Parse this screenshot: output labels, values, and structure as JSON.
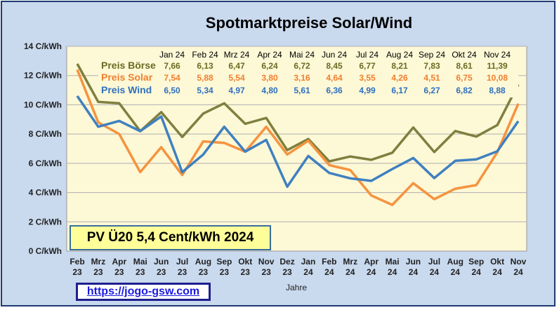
{
  "chart_data": {
    "type": "line",
    "title": "Spotmarktpreise  Solar/Wind",
    "xlabel": "Jahre",
    "ylabel": "",
    "ylim": [
      0,
      14
    ],
    "yticks": [
      "0 C/kWh",
      "2 C/kWh",
      "4 C/kWh",
      "6 C/kWh",
      "8 C/kWh",
      "10 C/kWh",
      "12 C/kWh",
      "14 C/kWh"
    ],
    "grid": true,
    "categories": [
      [
        "Feb",
        "23"
      ],
      [
        "Mrz",
        "23"
      ],
      [
        "Apr",
        "23"
      ],
      [
        "Mai",
        "23"
      ],
      [
        "Jun",
        "23"
      ],
      [
        "Jul",
        "23"
      ],
      [
        "Aug",
        "23"
      ],
      [
        "Sep",
        "23"
      ],
      [
        "Okt",
        "23"
      ],
      [
        "Nov",
        "23"
      ],
      [
        "Dez",
        "23"
      ],
      [
        "Jan",
        "24"
      ],
      [
        "Feb",
        "24"
      ],
      [
        "Mrz",
        "24"
      ],
      [
        "Apr",
        "24"
      ],
      [
        "Mai",
        "24"
      ],
      [
        "Jun",
        "24"
      ],
      [
        "Jul",
        "24"
      ],
      [
        "Aug",
        "24"
      ],
      [
        "Sep",
        "24"
      ],
      [
        "Okt",
        "24"
      ],
      [
        "Nov",
        "24"
      ]
    ],
    "series": [
      {
        "name": "Preis Börse",
        "color": "#7f7f3f",
        "values": [
          12.8,
          10.2,
          10.1,
          8.2,
          9.5,
          7.8,
          9.4,
          10.1,
          8.7,
          9.1,
          6.9,
          7.66,
          6.13,
          6.47,
          6.24,
          6.72,
          8.45,
          6.77,
          8.21,
          7.83,
          8.61,
          11.39
        ]
      },
      {
        "name": "Preis Solar",
        "color": "#f59340",
        "values": [
          12.4,
          8.8,
          8.0,
          5.4,
          7.1,
          5.2,
          7.5,
          7.4,
          6.8,
          8.5,
          6.6,
          7.54,
          5.88,
          5.54,
          3.8,
          3.16,
          4.64,
          3.55,
          4.26,
          4.51,
          6.75,
          10.08
        ]
      },
      {
        "name": "Preis Wind",
        "color": "#3f80c0",
        "values": [
          10.6,
          8.5,
          8.9,
          8.2,
          9.2,
          5.4,
          6.6,
          8.5,
          6.8,
          7.6,
          4.4,
          6.5,
          5.34,
          4.97,
          4.8,
          5.61,
          6.36,
          4.99,
          6.17,
          6.27,
          6.82,
          8.88
        ]
      }
    ],
    "table": {
      "months": [
        "Jan 24",
        "Feb 24",
        "Mrz 24",
        "Apr 24",
        "Mai 24",
        "Jun 24",
        "Jul 24",
        "Aug 24",
        "Sep 24",
        "Okt 24",
        "Nov 24"
      ],
      "rows": [
        {
          "name": "Preis Börse",
          "color": "#6b6b22",
          "values": [
            "7,66",
            "6,13",
            "6,47",
            "6,24",
            "6,72",
            "8,45",
            "6,77",
            "8,21",
            "7,83",
            "8,61",
            "11,39"
          ]
        },
        {
          "name": "Preis Solar",
          "color": "#f07f2f",
          "values": [
            "7,54",
            "5,88",
            "5,54",
            "3,80",
            "3,16",
            "4,64",
            "3,55",
            "4,26",
            "4,51",
            "6,75",
            "10,08"
          ]
        },
        {
          "name": "Preis Wind",
          "color": "#2f70c0",
          "values": [
            "6,50",
            "5,34",
            "4,97",
            "4,80",
            "5,61",
            "6,36",
            "4,99",
            "6,17",
            "6,27",
            "6,82",
            "8,88"
          ]
        }
      ]
    }
  },
  "annotation": {
    "pv_text": "PV Ü20 5,4 Cent/kWh 2024"
  },
  "link": {
    "url_text": "https://jogo-gsw.com"
  }
}
